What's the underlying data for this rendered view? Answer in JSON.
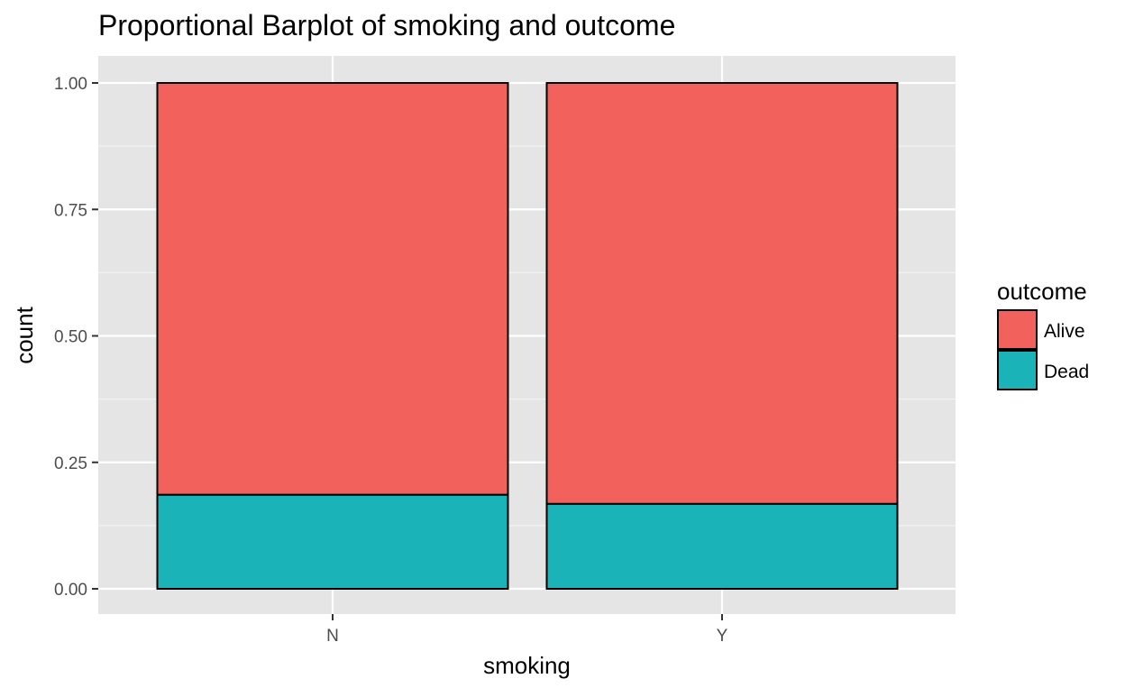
{
  "chart_data": {
    "type": "bar",
    "stacked": true,
    "title": "Proportional Barplot of smoking and outcome",
    "xlabel": "smoking",
    "ylabel": "count",
    "categories": [
      "N",
      "Y"
    ],
    "series": [
      {
        "name": "Dead",
        "values": [
          0.186,
          0.168
        ],
        "color": "#1AB4B8"
      },
      {
        "name": "Alive",
        "values": [
          0.814,
          0.832
        ],
        "color": "#F2615B"
      }
    ],
    "ylim": [
      0,
      1
    ],
    "yticks": [
      0,
      0.25,
      0.5,
      0.75,
      1
    ],
    "ytick_labels": [
      "0.00",
      "0.25",
      "0.50",
      "0.75",
      "1.00"
    ],
    "grid": true,
    "legend": {
      "title": "outcome",
      "entries": [
        "Alive",
        "Dead"
      ],
      "position": "right"
    },
    "colors": {
      "panel_background": "#E5E5E5",
      "grid_major": "#FFFFFF",
      "grid_minor": "#F2F2F2",
      "outline": "#000000",
      "axis_text": "#4D4D4D",
      "axis_title": "#000000"
    }
  }
}
